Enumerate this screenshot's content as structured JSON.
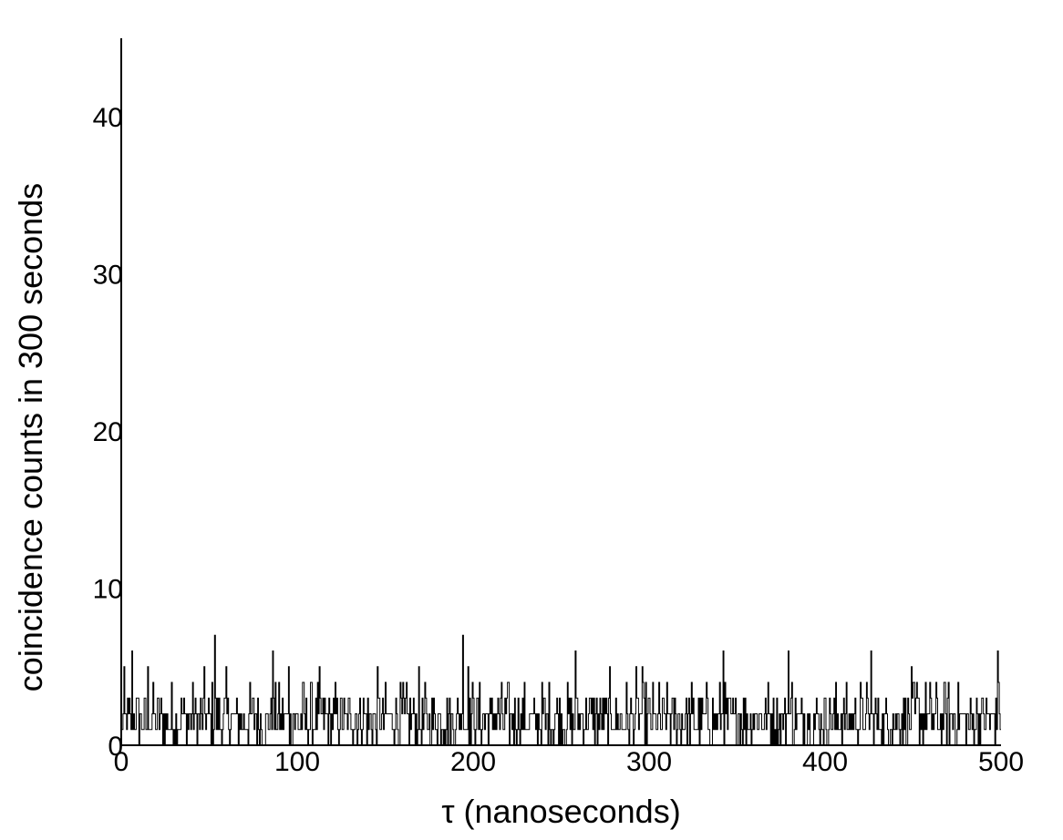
{
  "chart_data": {
    "type": "line",
    "title": "",
    "xlabel": "τ (nanoseconds)",
    "ylabel": "coincidence counts in 300 seconds",
    "xlim": [
      0,
      500
    ],
    "ylim": [
      0,
      45
    ],
    "xticks": [
      0,
      100,
      200,
      300,
      400,
      500
    ],
    "yticks": [
      0,
      10,
      20,
      30,
      40
    ],
    "xtick_labels": [
      "0",
      "100",
      "200",
      "300",
      "400",
      "500"
    ],
    "ytick_labels": [
      "0",
      "10",
      "20",
      "30",
      "40"
    ],
    "grid": false,
    "legend": "none",
    "bin_width_ns": 0.5,
    "series": [
      {
        "x": [
          0,
          6,
          15,
          53,
          86,
          95,
          194,
          197,
          258,
          342,
          379,
          381,
          426,
          452,
          498
        ],
        "y": [
          1,
          6,
          5,
          7,
          6,
          5,
          7,
          5,
          6,
          6,
          6,
          4,
          6,
          4,
          6
        ],
        "summary": "noisy baseline, counts 0–7, mean ≈ 1.5; peaks of 7 near τ = 53 and τ = 195"
      }
    ],
    "colors": {
      "trace": "#000000",
      "axis": "#000000",
      "background": "#ffffff"
    }
  }
}
